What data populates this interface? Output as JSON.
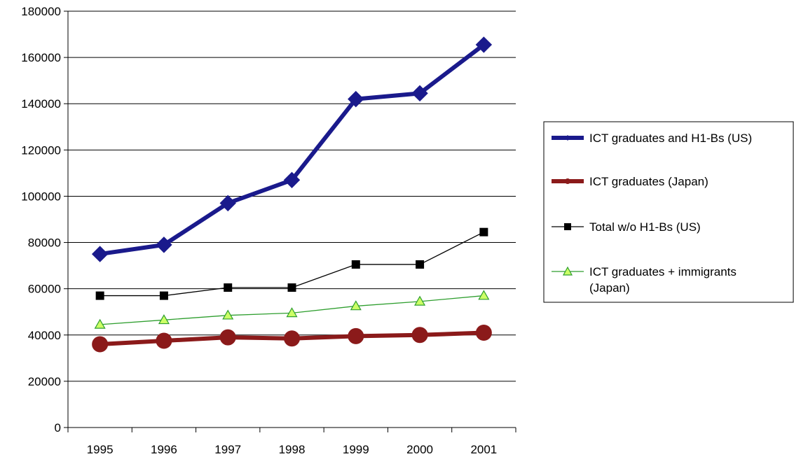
{
  "chart_data": {
    "type": "line",
    "title": "",
    "xlabel": "",
    "ylabel": "",
    "categories": [
      "1995",
      "1996",
      "1997",
      "1998",
      "1999",
      "2000",
      "2001"
    ],
    "ylim": [
      0,
      180000
    ],
    "yticks": [
      0,
      20000,
      40000,
      60000,
      80000,
      100000,
      120000,
      140000,
      160000,
      180000
    ],
    "grid": true,
    "legend_position": "right",
    "series": [
      {
        "name": "ICT graduates and H1-Bs (US)",
        "values": [
          75000,
          79000,
          97000,
          107000,
          142000,
          144500,
          165500
        ],
        "color": "#1a1a8c",
        "marker": "diamond",
        "line_style": "thick"
      },
      {
        "name": "ICT graduates (Japan)",
        "values": [
          36000,
          37500,
          39000,
          38500,
          39500,
          40000,
          41000
        ],
        "color": "#8b1a1a",
        "marker": "circle",
        "line_style": "thick"
      },
      {
        "name": "Total w/o H1-Bs (US)",
        "values": [
          57000,
          57000,
          60500,
          60500,
          70500,
          70500,
          84500
        ],
        "color": "#000000",
        "marker": "square",
        "line_style": "thin"
      },
      {
        "name_lines": [
          "ICT graduates + immigrants",
          "(Japan)"
        ],
        "values": [
          44500,
          46500,
          48500,
          49500,
          52500,
          54500,
          57000
        ],
        "color": "#2e9e2e",
        "marker": "triangle",
        "marker_fill": "#ccff66",
        "line_style": "thin"
      }
    ]
  }
}
